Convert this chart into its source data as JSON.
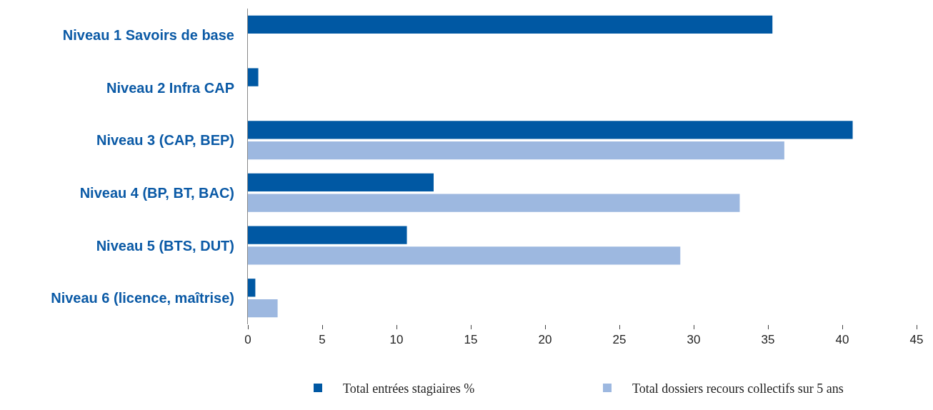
{
  "chart_data": {
    "type": "bar",
    "orientation": "horizontal",
    "categories": [
      "Niveau 1 Savoirs de base",
      "Niveau 2 Infra CAP",
      "Niveau 3 (CAP, BEP)",
      "Niveau 4 (BP, BT, BAC)",
      "Niveau 5 (BTS, DUT)",
      "Niveau 6 (licence, maîtrise)"
    ],
    "series": [
      {
        "name": "Total entrées stagiaires %",
        "color": "#0058a3",
        "values": [
          35.3,
          0.7,
          40.7,
          12.5,
          10.7,
          0.5
        ]
      },
      {
        "name": "Total dossiers recours collectifs sur 5 ans",
        "color": "#9db8e0",
        "values": [
          null,
          null,
          36.1,
          33.1,
          29.1,
          2.0
        ]
      }
    ],
    "xlim": [
      0,
      45
    ],
    "xticks": [
      0,
      5,
      10,
      15,
      20,
      25,
      30,
      35,
      40,
      45
    ],
    "legend": "bottom"
  }
}
